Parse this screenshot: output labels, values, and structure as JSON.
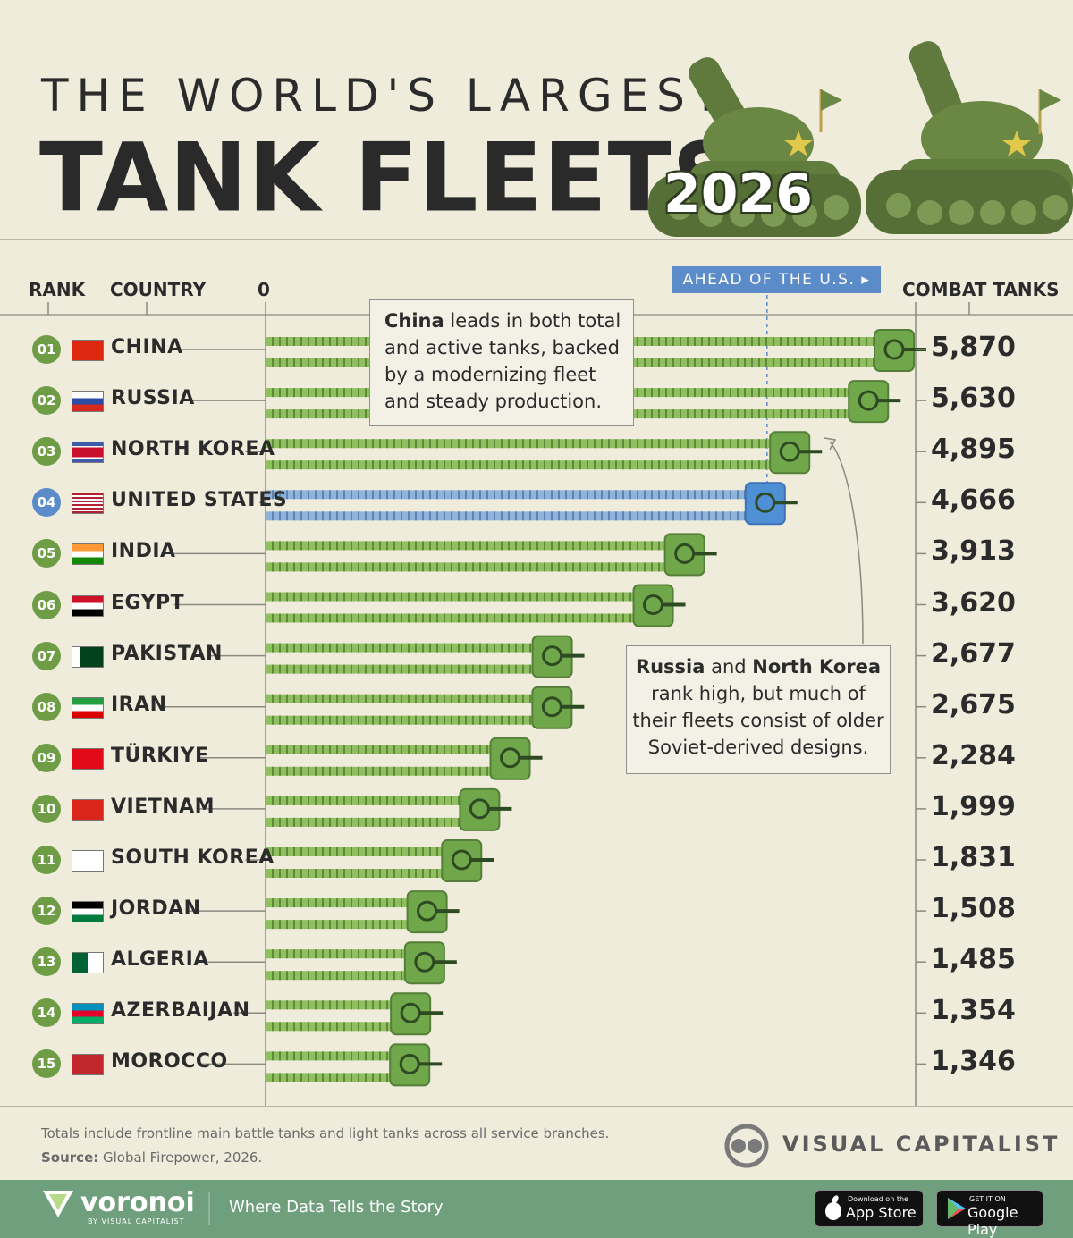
{
  "title_line1": "THE WORLD'S LARGEST",
  "title_line2": "TANK FLEETS",
  "year": "2026",
  "headers": {
    "rank": "RANK",
    "country": "COUNTRY",
    "zero": "0",
    "combat_tanks": "COMBAT TANKS"
  },
  "ahead_label": "AHEAD OF THE U.S.",
  "annotation_china": {
    "bold": "China",
    "rest": " leads in both total and active tanks, backed by a modernizing fleet and steady production."
  },
  "annotation_russia": {
    "bold1": "Russia",
    "mid": " and ",
    "bold2": "North Korea",
    "rest": " rank high, but much of their fleets consist of older Soviet-derived designs."
  },
  "colors": {
    "bar_green": "#8fbf5f",
    "bar_blue": "#8fb3da",
    "tank_green": "#6fa74a",
    "tank_blue": "#4f8fd6",
    "background": "#efecdc"
  },
  "chart_data": {
    "type": "bar",
    "orientation": "horizontal",
    "categories": [
      "CHINA",
      "RUSSIA",
      "NORTH KOREA",
      "UNITED STATES",
      "INDIA",
      "EGYPT",
      "PAKISTAN",
      "IRAN",
      "TÜRKIYE",
      "VIETNAM",
      "SOUTH KOREA",
      "JORDAN",
      "ALGERIA",
      "AZERBAIJAN",
      "MOROCCO"
    ],
    "ranks": [
      "01",
      "02",
      "03",
      "04",
      "05",
      "06",
      "07",
      "08",
      "09",
      "10",
      "11",
      "12",
      "13",
      "14",
      "15"
    ],
    "values": [
      5870,
      5630,
      4895,
      4666,
      3913,
      3620,
      2677,
      2675,
      2284,
      1999,
      1831,
      1508,
      1485,
      1354,
      1346
    ],
    "value_labels": [
      "5,870",
      "5,630",
      "4,895",
      "4,666",
      "3,913",
      "3,620",
      "2,677",
      "2,675",
      "2,284",
      "1,999",
      "1,831",
      "1,508",
      "1,485",
      "1,354",
      "1,346"
    ],
    "highlight": "UNITED STATES",
    "xlim": [
      0,
      5870
    ],
    "ylabel": "COMBAT TANKS"
  },
  "footer": {
    "note": "Totals include frontline main battle tanks and light tanks across all service branches.",
    "source_label": "Source:",
    "source": " Global Firepower, 2026."
  },
  "brand": "VISUAL CAPITALIST",
  "bottom_bar": {
    "logo": "voronoi",
    "logo_sub": "BY VISUAL CAPITALIST",
    "tagline": "Where Data Tells the Story",
    "appstore_small": "Download on the",
    "appstore": "App Store",
    "gplay_small": "GET IT ON",
    "gplay": "Google Play"
  }
}
